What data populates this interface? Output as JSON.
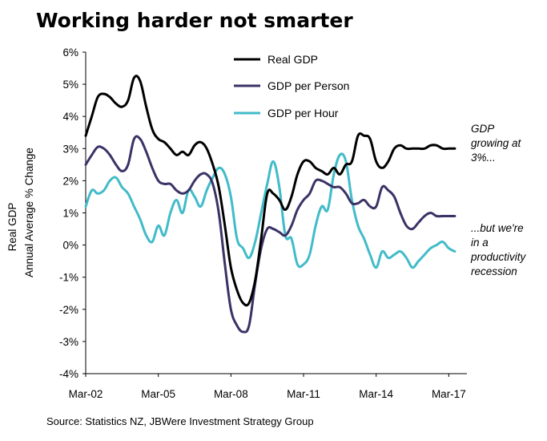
{
  "chart_data": {
    "type": "line",
    "title": "Working harder not smarter",
    "ylabel_lines": [
      "Real GDP",
      "Annual Average % Change"
    ],
    "xlabel": "",
    "ylim": [
      -4,
      6
    ],
    "y_ticks": [
      "-4%",
      "-3%",
      "-2%",
      "-1%",
      "0%",
      "1%",
      "2%",
      "3%",
      "4%",
      "5%",
      "6%"
    ],
    "x_range": [
      2002.0,
      2017.75
    ],
    "x_ticks": [
      {
        "label": "Mar-02",
        "x": 2002.0
      },
      {
        "label": "Mar-05",
        "x": 2005.0
      },
      {
        "label": "Mar-08",
        "x": 2008.0
      },
      {
        "label": "Mar-11",
        "x": 2011.0
      },
      {
        "label": "Mar-14",
        "x": 2014.0
      },
      {
        "label": "Mar-17",
        "x": 2017.0
      }
    ],
    "grid": false,
    "legend_position": "top-center",
    "series": [
      {
        "name": "Real GDP",
        "color": "#000000",
        "x": [
          2002.0,
          2002.25,
          2002.5,
          2002.75,
          2003.0,
          2003.25,
          2003.5,
          2003.75,
          2004.0,
          2004.25,
          2004.5,
          2004.75,
          2005.0,
          2005.25,
          2005.5,
          2005.75,
          2006.0,
          2006.25,
          2006.5,
          2006.75,
          2007.0,
          2007.25,
          2007.5,
          2007.75,
          2008.0,
          2008.25,
          2008.5,
          2008.75,
          2009.0,
          2009.25,
          2009.5,
          2009.75,
          2010.0,
          2010.25,
          2010.5,
          2010.75,
          2011.0,
          2011.25,
          2011.5,
          2011.75,
          2012.0,
          2012.25,
          2012.5,
          2012.75,
          2013.0,
          2013.25,
          2013.5,
          2013.75,
          2014.0,
          2014.25,
          2014.5,
          2014.75,
          2015.0,
          2015.25,
          2015.5,
          2015.75,
          2016.0,
          2016.25,
          2016.5,
          2016.75,
          2017.0,
          2017.25
        ],
        "values": [
          3.4,
          4.0,
          4.6,
          4.7,
          4.6,
          4.4,
          4.3,
          4.5,
          5.2,
          5.1,
          4.3,
          3.6,
          3.3,
          3.2,
          3.0,
          2.8,
          2.9,
          2.8,
          3.1,
          3.2,
          3.0,
          2.5,
          1.8,
          0.6,
          -0.7,
          -1.4,
          -1.8,
          -1.8,
          -1.1,
          0.2,
          1.6,
          1.6,
          1.4,
          1.1,
          1.5,
          2.2,
          2.6,
          2.6,
          2.4,
          2.3,
          2.2,
          2.4,
          2.2,
          2.5,
          2.6,
          3.4,
          3.4,
          3.3,
          2.6,
          2.4,
          2.6,
          3.0,
          3.1,
          3.0,
          3.0,
          3.0,
          3.0,
          3.1,
          3.1,
          3.0,
          3.0,
          3.0
        ]
      },
      {
        "name": "GDP per Person",
        "color": "#3b3266",
        "x": [
          2002.0,
          2002.25,
          2002.5,
          2002.75,
          2003.0,
          2003.25,
          2003.5,
          2003.75,
          2004.0,
          2004.25,
          2004.5,
          2004.75,
          2005.0,
          2005.25,
          2005.5,
          2005.75,
          2006.0,
          2006.25,
          2006.5,
          2006.75,
          2007.0,
          2007.25,
          2007.5,
          2007.75,
          2008.0,
          2008.25,
          2008.5,
          2008.75,
          2009.0,
          2009.25,
          2009.5,
          2009.75,
          2010.0,
          2010.25,
          2010.5,
          2010.75,
          2011.0,
          2011.25,
          2011.5,
          2011.75,
          2012.0,
          2012.25,
          2012.5,
          2012.75,
          2013.0,
          2013.25,
          2013.5,
          2013.75,
          2014.0,
          2014.25,
          2014.5,
          2014.75,
          2015.0,
          2015.25,
          2015.5,
          2015.75,
          2016.0,
          2016.25,
          2016.5,
          2016.75,
          2017.0,
          2017.25
        ],
        "values": [
          2.5,
          2.8,
          3.05,
          3.0,
          2.8,
          2.5,
          2.3,
          2.5,
          3.3,
          3.3,
          2.9,
          2.4,
          2.0,
          1.9,
          1.9,
          1.7,
          1.6,
          1.7,
          2.0,
          2.2,
          2.2,
          1.9,
          1.0,
          -0.6,
          -2.0,
          -2.5,
          -2.7,
          -2.5,
          -1.2,
          -0.1,
          0.5,
          0.5,
          0.4,
          0.3,
          0.6,
          1.1,
          1.4,
          1.6,
          2.0,
          2.0,
          1.9,
          1.8,
          1.8,
          1.6,
          1.3,
          1.3,
          1.4,
          1.2,
          1.2,
          1.8,
          1.7,
          1.5,
          1.0,
          0.6,
          0.5,
          0.7,
          0.9,
          1.0,
          0.9,
          0.9,
          0.9,
          0.9
        ]
      },
      {
        "name": "GDP per Hour",
        "color": "#41bbc9",
        "x": [
          2002.0,
          2002.25,
          2002.5,
          2002.75,
          2003.0,
          2003.25,
          2003.5,
          2003.75,
          2004.0,
          2004.25,
          2004.5,
          2004.75,
          2005.0,
          2005.25,
          2005.5,
          2005.75,
          2006.0,
          2006.25,
          2006.5,
          2006.75,
          2007.0,
          2007.25,
          2007.5,
          2007.75,
          2008.0,
          2008.25,
          2008.5,
          2008.75,
          2009.0,
          2009.25,
          2009.5,
          2009.75,
          2010.0,
          2010.25,
          2010.5,
          2010.75,
          2011.0,
          2011.25,
          2011.5,
          2011.75,
          2012.0,
          2012.25,
          2012.5,
          2012.75,
          2013.0,
          2013.25,
          2013.5,
          2013.75,
          2014.0,
          2014.25,
          2014.5,
          2014.75,
          2015.0,
          2015.25,
          2015.5,
          2015.75,
          2016.0,
          2016.25,
          2016.5,
          2016.75,
          2017.0,
          2017.25
        ],
        "values": [
          1.2,
          1.7,
          1.6,
          1.7,
          2.0,
          2.1,
          1.8,
          1.6,
          1.2,
          0.8,
          0.3,
          0.1,
          0.6,
          0.3,
          1.0,
          1.4,
          1.0,
          1.7,
          1.5,
          1.2,
          1.7,
          2.1,
          2.4,
          2.2,
          1.5,
          0.2,
          -0.1,
          -0.4,
          0.1,
          1.0,
          1.9,
          2.6,
          1.8,
          0.3,
          0.2,
          -0.6,
          -0.6,
          -0.3,
          0.6,
          1.2,
          1.1,
          2.2,
          2.8,
          2.6,
          1.4,
          0.6,
          0.2,
          -0.3,
          -0.7,
          -0.2,
          -0.4,
          -0.3,
          -0.2,
          -0.4,
          -0.7,
          -0.5,
          -0.3,
          -0.1,
          0.0,
          0.1,
          -0.1,
          -0.2
        ]
      }
    ],
    "annotations": [
      {
        "lines": [
          "GDP",
          "growing at",
          "3%..."
        ]
      },
      {
        "lines": [
          "...but we're",
          "in a",
          "productivity",
          "recession"
        ]
      }
    ],
    "source": "Source: Statistics NZ, JBWere Investment Strategy Group"
  }
}
